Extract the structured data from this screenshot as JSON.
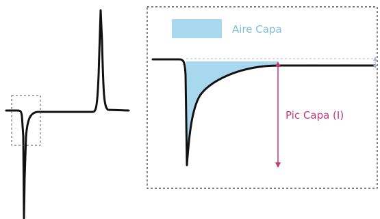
{
  "legend": {
    "label": "Aire Capa"
  },
  "annotation": {
    "peak_label": "Pic Capa (I)"
  },
  "colors": {
    "trace": "#111111",
    "area_fill": "#a8d8ee",
    "area_legend_text": "#7fbfdc",
    "peak_arrow": "#c2397a",
    "baseline_arrow": "#a9b7dc",
    "box_border": "#333333",
    "small_box_border": "#555555"
  }
}
